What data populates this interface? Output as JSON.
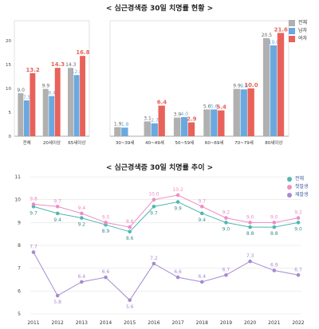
{
  "top": {
    "title": "< 심근경색증 30일 치명률 현황 >",
    "legend": [
      "전체",
      "남자",
      "여자"
    ],
    "colors": [
      "#b0b0b0",
      "#6aa9df",
      "#e8625b"
    ]
  },
  "bottom": {
    "title": "< 심근경색증 30일 치명률 추이 >",
    "legend": [
      "전체",
      "첫발생",
      "재발생"
    ],
    "colors": [
      "#4fb7b3",
      "#ee8dc3",
      "#a68ad0"
    ]
  },
  "chart_data": [
    {
      "type": "bar",
      "title": "< 심근경색증 30일 치명률 현황 >",
      "categories": [
        "전체",
        "20세이상",
        "65세이상"
      ],
      "series": [
        {
          "name": "전체",
          "values": [
            9.0,
            9.9,
            14.3
          ]
        },
        {
          "name": "남자",
          "values": [
            7.5,
            8.4,
            12.8
          ]
        },
        {
          "name": "여자",
          "values": [
            13.2,
            14.3,
            16.8
          ]
        }
      ],
      "ylim": [
        0,
        25
      ],
      "yticks": [
        0,
        5,
        10,
        15,
        20
      ],
      "value_labels": [
        [
          "9.0",
          "7.5",
          "13.2"
        ],
        [
          "9.9",
          "8.4",
          "14.3"
        ],
        [
          "14.3",
          "12.8",
          "16.8"
        ]
      ],
      "grid": false
    },
    {
      "type": "bar",
      "categories": [
        "30~39세",
        "40~49세",
        "50~59세",
        "60~69세",
        "70~79세",
        "80세이상"
      ],
      "series": [
        {
          "name": "전체",
          "values": [
            1.9,
            3.1,
            3.9,
            5.6,
            9.9,
            20.5
          ]
        },
        {
          "name": "남자",
          "values": [
            1.8,
            2.7,
            4.0,
            5.6,
            9.8,
            19.0
          ]
        },
        {
          "name": "여자",
          "values": [
            0,
            6.4,
            2.9,
            5.4,
            10.0,
            21.6
          ]
        }
      ],
      "value_labels": [
        [
          "1.9",
          "1.8",
          ""
        ],
        [
          "3.1",
          "2.7",
          "6.4"
        ],
        [
          "3.9",
          "4.0",
          "2.9"
        ],
        [
          "5.6",
          "5.6",
          "5.4"
        ],
        [
          "9.9",
          "9.8",
          "10.0"
        ],
        [
          "20.5",
          "19.0",
          "21.6"
        ]
      ],
      "ylim": [
        0,
        25
      ],
      "legend": "top-right",
      "grid": false
    },
    {
      "type": "line",
      "title": "< 심근경색증 30일 치명률 추이 >",
      "x": [
        "2011",
        "2012",
        "2013",
        "2014",
        "2015",
        "2016",
        "2017",
        "2018",
        "2019",
        "2020",
        "2021",
        "2022"
      ],
      "series": [
        {
          "name": "전체",
          "values": [
            9.7,
            9.4,
            9.2,
            8.9,
            8.6,
            9.7,
            9.9,
            9.4,
            9.0,
            8.8,
            8.8,
            9.0
          ]
        },
        {
          "name": "첫발생",
          "values": [
            9.8,
            9.7,
            9.4,
            9.0,
            8.8,
            10.0,
            10.2,
            9.7,
            9.2,
            9.0,
            9.0,
            9.2
          ]
        },
        {
          "name": "재발생",
          "values": [
            7.7,
            5.8,
            6.4,
            6.6,
            5.6,
            7.2,
            6.6,
            6.4,
            6.7,
            7.3,
            6.9,
            6.7
          ]
        }
      ],
      "ylim": [
        5,
        11
      ],
      "yticks": [
        5,
        6,
        7,
        8,
        9,
        10,
        11
      ],
      "legend": "top-right",
      "grid": true
    }
  ]
}
